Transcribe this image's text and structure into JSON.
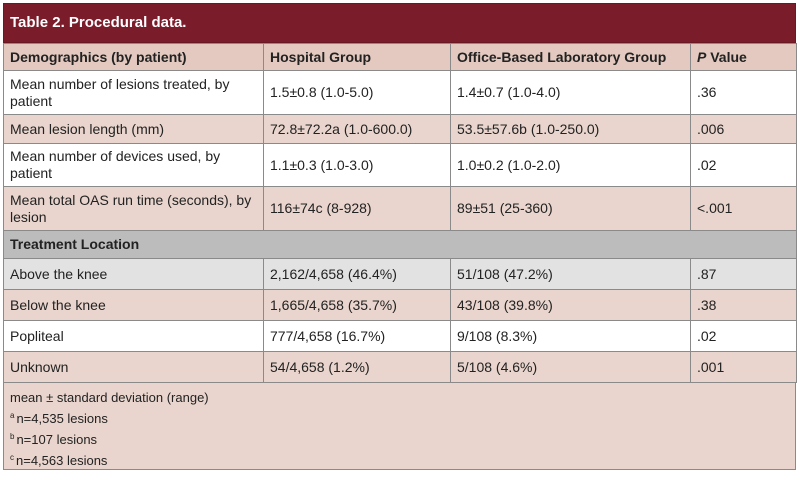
{
  "title": "Table 2. Procedural data.",
  "table": {
    "header": [
      "Demographics (by patient)",
      "Hospital Group",
      "Office-Based Laboratory Group",
      {
        "italic": "P",
        "text": " Value"
      }
    ],
    "rows": [
      [
        "Mean number of lesions treated, by patient",
        "1.5±0.8 (1.0-5.0)",
        "1.4±0.7 (1.0-4.0)",
        ".36"
      ],
      [
        "Mean lesion length (mm)",
        "72.8±72.2a (1.0-600.0)",
        "53.5±57.6b (1.0-250.0)",
        ".006"
      ],
      [
        "Mean number of devices used, by patient",
        "1.1±0.3 (1.0-3.0)",
        "1.0±0.2 (1.0-2.0)",
        ".02"
      ],
      [
        "Mean total OAS run time (seconds), by lesion",
        "116±74c (8-928)",
        "89±51 (25-360)",
        "<.001"
      ]
    ],
    "section": "Treatment Location",
    "section_rows": [
      [
        "Above the knee",
        "2,162/4,658 (46.4%)",
        "51/108 (47.2%)",
        ".87"
      ],
      [
        "Below the knee",
        "1,665/4,658 (35.7%)",
        "43/108 (39.8%)",
        ".38"
      ],
      [
        "Popliteal",
        "777/4,658 (16.7%)",
        "9/108 (8.3%)",
        ".02"
      ],
      [
        "Unknown",
        "54/4,658 (1.2%)",
        "5/108 (4.6%)",
        ".001"
      ]
    ]
  },
  "footnotes": {
    "legend": "mean ± standard deviation (range)",
    "notes": [
      {
        "marker": "a",
        "text": "n=4,535 lesions"
      },
      {
        "marker": "b",
        "text": "n=107 lesions"
      },
      {
        "marker": "c",
        "text": "n=4,563 lesions"
      }
    ]
  }
}
